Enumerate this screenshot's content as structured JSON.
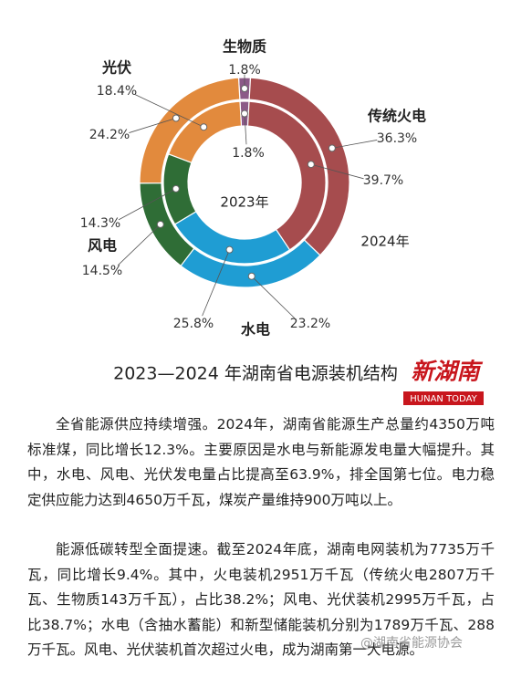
{
  "chart_data": {
    "type": "donut",
    "title": "2023—2024 年湖南省电源装机结构",
    "categories": [
      "生物质",
      "传统火电",
      "水电",
      "风电",
      "光伏"
    ],
    "colors": [
      "#8c5a88",
      "#a64c4e",
      "#1f9dd3",
      "#2f6d36",
      "#e28a3d"
    ],
    "series": [
      {
        "name": "2023年",
        "values": [
          1.8,
          39.7,
          25.8,
          14.3,
          18.4
        ],
        "value_labels": [
          "1.8%",
          "39.7%",
          "25.8%",
          "14.3%",
          "18.4%"
        ]
      },
      {
        "name": "2024年",
        "values": [
          1.8,
          36.3,
          23.2,
          14.5,
          24.2
        ],
        "value_labels": [
          "1.8%",
          "36.3%",
          "23.2%",
          "14.5%",
          "24.2%"
        ]
      }
    ]
  },
  "logo": {
    "name": "新湖南",
    "subtitle": "HUNAN TODAY"
  },
  "article": {
    "paragraphs": [
      "全省能源供应持续增强。2024年，湖南省能源生产总量约4350万吨标准煤，同比增长12.3%。主要原因是水电与新能源发电量大幅提升。其中，水电、风电、光伏发电量占比提高至63.9%，排全国第七位。电力稳定供应能力达到4650万千瓦，煤炭产量维持900万吨以上。",
      "能源低碳转型全面提速。截至2024年底，湖南电网装机为7735万千瓦，同比增长9.4%。其中，火电装机2951万千瓦（传统火电2807万千瓦、生物质143万千瓦），占比38.2%；风电、光伏装机2995万千瓦，占比38.7%；水电（含抽水蓄能）和新型储能装机分别为1789万千瓦、288万千瓦。风电、光伏装机首次超过火电，成为湖南第一大电源。"
    ]
  },
  "watermark": "@湖南省能源协会"
}
